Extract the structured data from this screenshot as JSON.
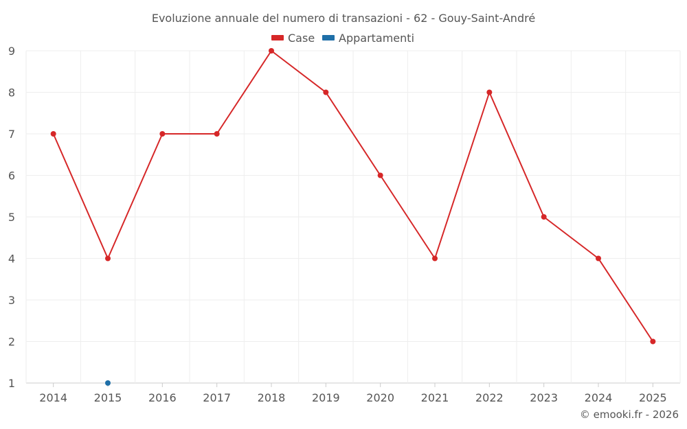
{
  "chart_data": {
    "type": "line",
    "title": "Evoluzione annuale del numero di transazioni - 62 - Gouy-Saint-André",
    "xlabel": "",
    "ylabel": "",
    "categories": [
      "2014",
      "2015",
      "2016",
      "2017",
      "2018",
      "2019",
      "2020",
      "2021",
      "2022",
      "2023",
      "2024",
      "2025"
    ],
    "ylim": [
      1,
      9
    ],
    "yticks": [
      "1",
      "2",
      "3",
      "4",
      "5",
      "6",
      "7",
      "8",
      "9"
    ],
    "grid": true,
    "legend_position": "top-center",
    "series": [
      {
        "name": "Case",
        "color": "#d62728",
        "values": [
          7,
          4,
          7,
          7,
          9,
          8,
          6,
          4,
          8,
          5,
          4,
          2
        ]
      },
      {
        "name": "Appartamenti",
        "color": "#1f6fa8",
        "values": [
          null,
          1,
          null,
          null,
          null,
          null,
          null,
          null,
          null,
          null,
          null,
          null
        ]
      }
    ]
  },
  "credit": "© emooki.fr - 2026"
}
